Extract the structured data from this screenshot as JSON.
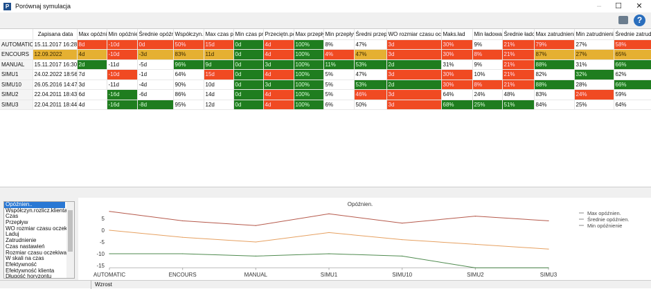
{
  "window": {
    "title": "Porównaj symulacja",
    "app_icon_letter": "P"
  },
  "colors": {
    "red": "#f04a22",
    "yellow": "#e5b032",
    "green": "#1f7d1f"
  },
  "table": {
    "columns": [
      "",
      "Zapisana data",
      "Max opóźnie",
      "Min opóźnier",
      "Średnie opóźni",
      "Współczyn.r",
      "Max czas pr",
      "Min czas pro",
      "Przeciętn.pc",
      "Max przepły",
      "Min przepływ",
      "Średni przepł",
      "WO rozmiar czasu ocze",
      "Maks.ład",
      "Min ładowar",
      "Średnie ładov",
      "Max zatrudnienie",
      "Min zatrudnienie",
      "Średnie zatrudr"
    ],
    "rows": [
      {
        "name": "AUTOMATIC",
        "cells": [
          [
            "15.11.2017 16:28",
            ""
          ],
          [
            "8d",
            "r"
          ],
          [
            "-10d",
            "r"
          ],
          [
            "0d",
            "r"
          ],
          [
            "50%",
            "r"
          ],
          [
            "15d",
            "r"
          ],
          [
            "0d",
            "g"
          ],
          [
            "4d",
            "r"
          ],
          [
            "100%",
            "g"
          ],
          [
            "8%",
            ""
          ],
          [
            "47%",
            ""
          ],
          [
            "3d",
            "r"
          ],
          [
            "30%",
            "r"
          ],
          [
            "9%",
            ""
          ],
          [
            "21%",
            "r"
          ],
          [
            "79%",
            "r"
          ],
          [
            "27%",
            ""
          ],
          [
            "58%",
            "r"
          ]
        ]
      },
      {
        "name": "ENCOURS",
        "cells": [
          [
            "12.09.2022",
            "y"
          ],
          [
            "4d",
            "y"
          ],
          [
            "-10d",
            "r"
          ],
          [
            "-3d",
            "y"
          ],
          [
            "83%",
            "y"
          ],
          [
            "11d",
            "y"
          ],
          [
            "0d",
            "g"
          ],
          [
            "4d",
            "r"
          ],
          [
            "100%",
            "g"
          ],
          [
            "4%",
            "r"
          ],
          [
            "47%",
            "y"
          ],
          [
            "3d",
            "r"
          ],
          [
            "30%",
            "r"
          ],
          [
            "8%",
            "r"
          ],
          [
            "21%",
            "r"
          ],
          [
            "87%",
            "y"
          ],
          [
            "27%",
            "y"
          ],
          [
            "65%",
            "y"
          ]
        ]
      },
      {
        "name": "MANUAL",
        "cells": [
          [
            "15.11.2017 16:30",
            ""
          ],
          [
            "2d",
            "g"
          ],
          [
            "-11d",
            ""
          ],
          [
            "-5d",
            ""
          ],
          [
            "96%",
            "g"
          ],
          [
            "9d",
            "g"
          ],
          [
            "0d",
            "g"
          ],
          [
            "3d",
            "g"
          ],
          [
            "100%",
            "g"
          ],
          [
            "11%",
            "g"
          ],
          [
            "53%",
            "g"
          ],
          [
            "2d",
            "g"
          ],
          [
            "31%",
            ""
          ],
          [
            "9%",
            ""
          ],
          [
            "21%",
            "r"
          ],
          [
            "88%",
            "g"
          ],
          [
            "31%",
            ""
          ],
          [
            "66%",
            "g"
          ]
        ]
      },
      {
        "name": "SIMU1",
        "cells": [
          [
            "24.02.2022 18:56",
            ""
          ],
          [
            "7d",
            ""
          ],
          [
            "-10d",
            "r"
          ],
          [
            "-1d",
            ""
          ],
          [
            "64%",
            ""
          ],
          [
            "15d",
            "r"
          ],
          [
            "0d",
            "g"
          ],
          [
            "4d",
            "r"
          ],
          [
            "100%",
            "g"
          ],
          [
            "5%",
            ""
          ],
          [
            "47%",
            ""
          ],
          [
            "3d",
            "r"
          ],
          [
            "30%",
            "r"
          ],
          [
            "10%",
            ""
          ],
          [
            "21%",
            "r"
          ],
          [
            "82%",
            ""
          ],
          [
            "32%",
            "g"
          ],
          [
            "62%",
            ""
          ]
        ]
      },
      {
        "name": "SIMU10",
        "cells": [
          [
            "26.05.2016 14:47",
            ""
          ],
          [
            "3d",
            ""
          ],
          [
            "-11d",
            ""
          ],
          [
            "-4d",
            ""
          ],
          [
            "90%",
            ""
          ],
          [
            "10d",
            ""
          ],
          [
            "0d",
            "g"
          ],
          [
            "3d",
            "g"
          ],
          [
            "100%",
            "g"
          ],
          [
            "5%",
            ""
          ],
          [
            "53%",
            "g"
          ],
          [
            "2d",
            "g"
          ],
          [
            "30%",
            "r"
          ],
          [
            "8%",
            "r"
          ],
          [
            "21%",
            "r"
          ],
          [
            "88%",
            "g"
          ],
          [
            "28%",
            ""
          ],
          [
            "66%",
            "g"
          ]
        ]
      },
      {
        "name": "SIMU2",
        "cells": [
          [
            "22.04.2011 18:43",
            ""
          ],
          [
            "6d",
            ""
          ],
          [
            "-16d",
            "g"
          ],
          [
            "-6d",
            ""
          ],
          [
            "86%",
            ""
          ],
          [
            "14d",
            ""
          ],
          [
            "0d",
            "g"
          ],
          [
            "4d",
            "r"
          ],
          [
            "100%",
            "g"
          ],
          [
            "5%",
            ""
          ],
          [
            "46%",
            "r"
          ],
          [
            "3d",
            "r"
          ],
          [
            "64%",
            ""
          ],
          [
            "24%",
            ""
          ],
          [
            "48%",
            ""
          ],
          [
            "83%",
            ""
          ],
          [
            "24%",
            "r"
          ],
          [
            "59%",
            ""
          ]
        ]
      },
      {
        "name": "SIMU3",
        "cells": [
          [
            "22.04.2011 18:44",
            ""
          ],
          [
            "4d",
            ""
          ],
          [
            "-16d",
            "g"
          ],
          [
            "-8d",
            "g"
          ],
          [
            "95%",
            ""
          ],
          [
            "12d",
            ""
          ],
          [
            "0d",
            "g"
          ],
          [
            "4d",
            "r"
          ],
          [
            "100%",
            "g"
          ],
          [
            "6%",
            ""
          ],
          [
            "50%",
            ""
          ],
          [
            "3d",
            "r"
          ],
          [
            "68%",
            "g"
          ],
          [
            "25%",
            "g"
          ],
          [
            "51%",
            "g"
          ],
          [
            "84%",
            ""
          ],
          [
            "25%",
            ""
          ],
          [
            "64%",
            ""
          ]
        ]
      }
    ]
  },
  "category_list": {
    "selected": 0,
    "items": [
      "Opóźnien..",
      "Współczyn.rozlicz.klienta",
      "Czas",
      "Przepływ",
      "WO rozmiar czasu oczekiwa",
      "Laduj",
      "Zatrudnienie",
      "Czas nastawień",
      "Rozmiar czasu oczekiwania",
      "W skali na czas",
      "Efektywność",
      "Efektywność klienta",
      "Długość horyzontu"
    ]
  },
  "chart_data": {
    "type": "line",
    "title": "Opóźnien.",
    "categories": [
      "AUTOMATIC",
      "ENCOURS",
      "MANUAL",
      "SIMU1",
      "SIMU10",
      "SIMU2",
      "SIMU3"
    ],
    "yticks": [
      5,
      0,
      -5,
      -10,
      -15
    ],
    "ylim": [
      -16,
      8
    ],
    "legend_position": "right",
    "series": [
      {
        "name": "Max opóźnien.",
        "color": "#b5584a",
        "values": [
          8,
          4,
          2,
          7,
          3,
          6,
          4
        ]
      },
      {
        "name": "Średnie opóźnien.",
        "color": "#e6a060",
        "values": [
          0,
          -3,
          -5,
          -1,
          -4,
          -6,
          -8
        ]
      },
      {
        "name": "Min opóźnienie",
        "color": "#4e8a4e",
        "values": [
          -10,
          -10,
          -11,
          -10,
          -11,
          -16,
          -16
        ]
      }
    ]
  },
  "status": {
    "text": "Wzrost"
  }
}
